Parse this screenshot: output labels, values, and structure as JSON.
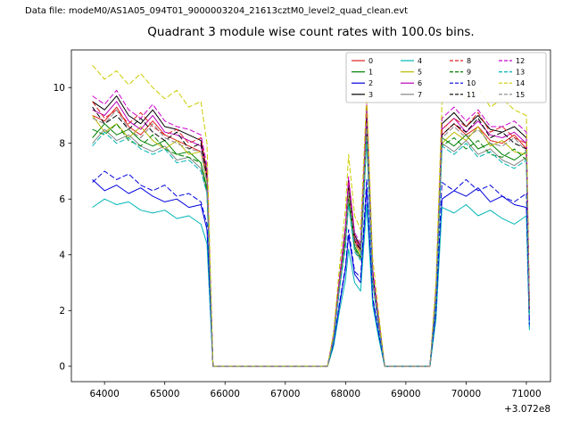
{
  "figure": {
    "data_file_label": "Data file: modeM0/AS1A05_094T01_9000003204_21613cztM0_level2_quad_clean.evt",
    "title": "Quadrant 3 module wise count rates with 100.0s bins."
  },
  "chart_data": {
    "type": "line",
    "title": "Quadrant 3 module wise count rates with 100.0s bins.",
    "xlabel": "",
    "ylabel": "",
    "x_offset_text": "+3.072e8",
    "xlim": [
      63450,
      71400
    ],
    "ylim": [
      -0.55,
      11.35
    ],
    "grid": false,
    "legend": {
      "position": "upper right",
      "ncol": 4
    },
    "xticks": {
      "values": [
        64000,
        65000,
        66000,
        67000,
        68000,
        69000,
        70000,
        71000
      ],
      "labels": [
        "64000",
        "65000",
        "66000",
        "67000",
        "68000",
        "69000",
        "70000",
        "71000"
      ]
    },
    "yticks": {
      "values": [
        0,
        2,
        4,
        6,
        8,
        10
      ],
      "labels": [
        "0",
        "2",
        "4",
        "6",
        "8",
        "10"
      ]
    },
    "x": [
      63800,
      64000,
      64200,
      64400,
      64600,
      64800,
      65000,
      65200,
      65400,
      65600,
      65700,
      65800,
      66000,
      66500,
      67000,
      67500,
      67700,
      67800,
      67900,
      68000,
      68050,
      68150,
      68250,
      68350,
      68450,
      68550,
      68650,
      68800,
      69000,
      69200,
      69400,
      69500,
      69600,
      69800,
      70000,
      70200,
      70400,
      70600,
      70800,
      71000,
      71050
    ],
    "series": [
      {
        "name": "0",
        "color": "#dd2020",
        "style": "solid",
        "values": [
          9.0,
          8.8,
          9.3,
          8.6,
          8.3,
          8.8,
          8.3,
          8.1,
          7.9,
          7.7,
          6.7,
          0,
          0,
          0,
          0,
          0,
          0,
          1.0,
          3.0,
          4.7,
          6.4,
          4.5,
          4.1,
          8.8,
          3.3,
          1.5,
          0,
          0,
          0,
          0,
          0,
          2.6,
          8.3,
          8.7,
          8.3,
          8.6,
          8.1,
          8.0,
          8.3,
          7.8,
          2.0
        ]
      },
      {
        "name": "1",
        "color": "#008000",
        "style": "solid",
        "values": [
          8.2,
          8.7,
          8.3,
          8.5,
          8.1,
          7.9,
          8.1,
          7.6,
          7.7,
          7.3,
          6.4,
          0,
          0,
          0,
          0,
          0,
          0,
          1.0,
          2.9,
          4.5,
          6.1,
          4.3,
          3.9,
          8.4,
          3.1,
          1.5,
          0,
          0,
          0,
          0,
          0,
          2.5,
          8.2,
          7.9,
          8.3,
          7.8,
          8.0,
          7.6,
          7.4,
          7.7,
          1.9
        ]
      },
      {
        "name": "2",
        "color": "#0000dd",
        "style": "solid",
        "values": [
          6.7,
          6.3,
          6.5,
          6.2,
          6.4,
          6.1,
          5.9,
          6.0,
          5.7,
          5.8,
          4.9,
          0,
          0,
          0,
          0,
          0,
          0,
          0.8,
          2.2,
          3.5,
          4.7,
          3.3,
          3.0,
          6.4,
          2.4,
          1.1,
          0,
          0,
          0,
          0,
          0,
          1.9,
          6.0,
          6.3,
          6.1,
          6.4,
          5.9,
          6.1,
          5.8,
          5.7,
          1.4
        ]
      },
      {
        "name": "3",
        "color": "#000000",
        "style": "solid",
        "values": [
          9.5,
          9.2,
          9.7,
          9.0,
          8.7,
          9.2,
          8.6,
          8.5,
          8.3,
          8.1,
          7.0,
          0,
          0,
          0,
          0,
          0,
          0,
          1.1,
          3.2,
          5.0,
          6.7,
          4.7,
          4.3,
          9.2,
          3.4,
          1.6,
          0,
          0,
          0,
          0,
          0,
          2.7,
          8.7,
          9.1,
          8.6,
          9.0,
          8.5,
          8.4,
          8.6,
          8.2,
          2.1
        ]
      },
      {
        "name": "4",
        "color": "#00b5b5",
        "style": "solid",
        "values": [
          5.7,
          6.0,
          5.8,
          5.9,
          5.6,
          5.5,
          5.6,
          5.3,
          5.4,
          5.1,
          4.4,
          0,
          0,
          0,
          0,
          0,
          0,
          0.7,
          2.0,
          3.1,
          4.2,
          3.0,
          2.7,
          5.8,
          2.2,
          1.0,
          0,
          0,
          0,
          0,
          0,
          1.7,
          5.7,
          5.5,
          5.8,
          5.4,
          5.6,
          5.3,
          5.1,
          5.4,
          1.3
        ]
      },
      {
        "name": "5",
        "color": "#bbbb00",
        "style": "solid",
        "values": [
          9.0,
          8.4,
          8.7,
          8.2,
          8.6,
          8.1,
          7.8,
          8.1,
          7.6,
          7.7,
          6.6,
          0,
          0,
          0,
          0,
          0,
          0,
          1.0,
          2.9,
          4.6,
          6.2,
          4.4,
          4.0,
          8.6,
          3.2,
          1.5,
          0,
          0,
          0,
          0,
          0,
          2.5,
          8.0,
          8.4,
          8.1,
          8.6,
          7.9,
          8.1,
          7.7,
          7.6,
          1.9
        ]
      },
      {
        "name": "6",
        "color": "#bb00bb",
        "style": "solid",
        "values": [
          9.2,
          9.0,
          9.5,
          8.8,
          8.5,
          9.0,
          8.4,
          8.3,
          8.1,
          7.9,
          6.9,
          0,
          0,
          0,
          0,
          0,
          0,
          1.1,
          3.1,
          4.8,
          6.5,
          4.6,
          4.2,
          9.0,
          3.3,
          1.6,
          0,
          0,
          0,
          0,
          0,
          2.6,
          8.5,
          8.9,
          8.4,
          8.8,
          8.3,
          8.2,
          8.4,
          8.0,
          2.0
        ]
      },
      {
        "name": "7",
        "color": "#858585",
        "style": "solid",
        "values": [
          8.0,
          8.5,
          8.1,
          8.3,
          7.9,
          7.7,
          7.9,
          7.4,
          7.5,
          7.1,
          6.2,
          0,
          0,
          0,
          0,
          0,
          0,
          1.0,
          2.8,
          4.4,
          5.9,
          4.2,
          3.8,
          8.2,
          3.0,
          1.4,
          0,
          0,
          0,
          0,
          0,
          2.4,
          8.0,
          7.7,
          8.1,
          7.6,
          7.8,
          7.4,
          7.2,
          7.5,
          1.8
        ]
      },
      {
        "name": "8",
        "color": "#dd2020",
        "style": "dashed",
        "values": [
          9.5,
          8.9,
          9.2,
          8.7,
          9.1,
          8.6,
          8.3,
          8.5,
          8.0,
          8.2,
          6.9,
          0,
          0,
          0,
          0,
          0,
          0,
          1.1,
          3.1,
          4.9,
          6.6,
          4.6,
          4.3,
          9.1,
          3.4,
          1.6,
          0,
          0,
          0,
          0,
          0,
          2.7,
          8.5,
          8.9,
          8.6,
          9.1,
          8.4,
          8.6,
          8.2,
          8.0,
          2.0
        ]
      },
      {
        "name": "9",
        "color": "#008000",
        "style": "dashed",
        "values": [
          8.5,
          8.3,
          8.7,
          8.1,
          7.9,
          8.3,
          7.8,
          7.6,
          7.5,
          7.3,
          6.3,
          0,
          0,
          0,
          0,
          0,
          0,
          1.0,
          2.8,
          4.5,
          6.0,
          4.2,
          3.9,
          8.3,
          3.1,
          1.5,
          0,
          0,
          0,
          0,
          0,
          2.4,
          7.9,
          8.2,
          7.8,
          8.1,
          7.6,
          7.5,
          7.8,
          7.4,
          1.9
        ]
      },
      {
        "name": "10",
        "color": "#0000dd",
        "style": "dashed",
        "values": [
          6.6,
          7.0,
          6.7,
          6.9,
          6.5,
          6.3,
          6.5,
          6.1,
          6.2,
          5.9,
          5.1,
          0,
          0,
          0,
          0,
          0,
          0,
          0.8,
          2.3,
          3.6,
          4.9,
          3.4,
          3.2,
          6.7,
          2.5,
          1.2,
          0,
          0,
          0,
          0,
          0,
          2.0,
          6.6,
          6.3,
          6.7,
          6.3,
          6.5,
          6.1,
          5.9,
          6.2,
          1.5
        ]
      },
      {
        "name": "11",
        "color": "#000000",
        "style": "dashed",
        "values": [
          9.3,
          8.7,
          9.0,
          8.5,
          8.9,
          8.4,
          8.1,
          8.4,
          7.8,
          8.0,
          6.8,
          0,
          0,
          0,
          0,
          0,
          0,
          1.0,
          3.0,
          4.8,
          6.4,
          4.5,
          4.2,
          8.9,
          3.3,
          1.6,
          0,
          0,
          0,
          0,
          0,
          2.6,
          8.3,
          8.7,
          8.4,
          8.9,
          8.2,
          8.4,
          8.0,
          7.8,
          2.0
        ]
      },
      {
        "name": "12",
        "color": "#cc00cc",
        "style": "dashed",
        "values": [
          9.7,
          9.4,
          9.9,
          9.2,
          8.9,
          9.4,
          8.8,
          8.6,
          8.5,
          8.3,
          7.2,
          0,
          0,
          0,
          0,
          0,
          0,
          1.1,
          3.2,
          5.1,
          6.8,
          4.8,
          4.4,
          9.4,
          3.5,
          1.7,
          0,
          0,
          0,
          0,
          0,
          2.8,
          8.9,
          9.3,
          8.8,
          9.2,
          8.6,
          8.6,
          8.8,
          8.4,
          2.1
        ]
      },
      {
        "name": "13",
        "color": "#00b5b5",
        "style": "dashed",
        "values": [
          7.9,
          8.4,
          8.0,
          8.2,
          7.8,
          7.6,
          7.8,
          7.3,
          7.4,
          7.0,
          6.2,
          0,
          0,
          0,
          0,
          0,
          0,
          0.9,
          2.8,
          4.3,
          5.8,
          4.1,
          3.8,
          8.1,
          3.0,
          1.4,
          0,
          0,
          0,
          0,
          0,
          2.4,
          7.9,
          7.6,
          8.0,
          7.5,
          7.7,
          7.3,
          7.1,
          7.4,
          1.8
        ]
      },
      {
        "name": "14",
        "color": "#cccc00",
        "style": "dashed",
        "values": [
          10.8,
          10.3,
          10.6,
          10.1,
          10.5,
          10.0,
          9.6,
          9.9,
          9.3,
          9.5,
          8.0,
          0,
          0,
          0,
          0,
          0,
          0,
          1.2,
          3.6,
          5.7,
          7.6,
          5.4,
          4.9,
          9.8,
          3.9,
          1.9,
          0,
          0,
          0,
          0,
          0,
          3.1,
          9.5,
          9.9,
          9.6,
          10.0,
          9.3,
          9.6,
          9.2,
          9.0,
          2.2
        ]
      },
      {
        "name": "15",
        "color": "#858585",
        "style": "dashed",
        "values": [
          8.9,
          8.7,
          9.2,
          8.5,
          8.2,
          8.7,
          8.2,
          8.0,
          7.8,
          7.7,
          6.6,
          0,
          0,
          0,
          0,
          0,
          0,
          1.0,
          3.0,
          4.7,
          6.3,
          4.4,
          4.1,
          8.7,
          3.2,
          1.5,
          0,
          0,
          0,
          0,
          0,
          2.6,
          8.2,
          8.6,
          8.2,
          8.5,
          8.0,
          7.9,
          8.2,
          7.7,
          2.0
        ]
      }
    ]
  }
}
